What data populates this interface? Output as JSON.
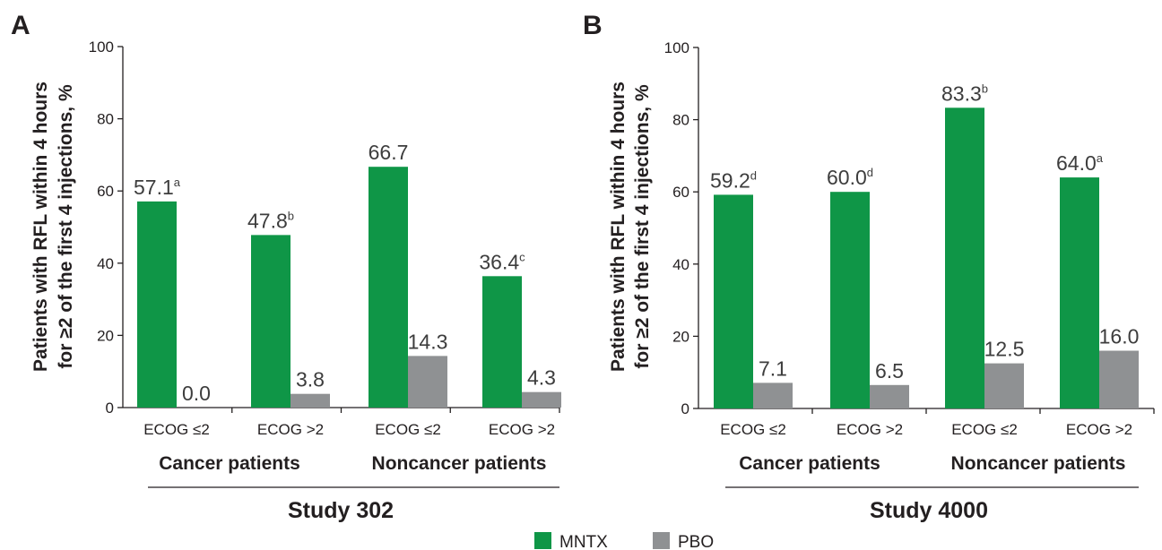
{
  "colors": {
    "mntx": "#0f9647",
    "pbo": "#8f9193",
    "axis": "#231f20",
    "text": "#231f20",
    "label": "#3d3d3d"
  },
  "legend": [
    {
      "name": "MNTX",
      "color": "#0f9647"
    },
    {
      "name": "PBO",
      "color": "#8f9193"
    }
  ],
  "chart_data": [
    {
      "type": "bar",
      "panel_label": "A",
      "title": "Study 302",
      "ylabel_lines": [
        "Patients with RFL within 4 hours",
        "for ≥2 of the first 4 injections, %"
      ],
      "ylim": [
        0,
        100
      ],
      "yticks": [
        0,
        20,
        40,
        60,
        80,
        100
      ],
      "categories": [
        "ECOG ≤2",
        "ECOG >2",
        "ECOG ≤2",
        "ECOG >2"
      ],
      "groups": [
        "Cancer patients",
        "Noncancer patients"
      ],
      "series": [
        {
          "name": "MNTX",
          "values": [
            57.1,
            47.8,
            66.7,
            36.4
          ],
          "labels": [
            "57.1",
            "47.8",
            "66.7",
            "36.4"
          ],
          "superscripts": [
            "a",
            "b",
            "",
            "c"
          ]
        },
        {
          "name": "PBO",
          "values": [
            0.0,
            3.8,
            14.3,
            4.3
          ],
          "labels": [
            "0.0",
            "3.8",
            "14.3",
            "4.3"
          ],
          "superscripts": [
            "",
            "",
            "",
            ""
          ]
        }
      ]
    },
    {
      "type": "bar",
      "panel_label": "B",
      "title": "Study 4000",
      "ylabel_lines": [
        "Patients with RFL within 4 hours",
        "for ≥2 of the first 4 injections, %"
      ],
      "ylim": [
        0,
        100
      ],
      "yticks": [
        0,
        20,
        40,
        60,
        80,
        100
      ],
      "categories": [
        "ECOG ≤2",
        "ECOG >2",
        "ECOG ≤2",
        "ECOG >2"
      ],
      "groups": [
        "Cancer patients",
        "Noncancer patients"
      ],
      "series": [
        {
          "name": "MNTX",
          "values": [
            59.2,
            60.0,
            83.3,
            64.0
          ],
          "labels": [
            "59.2",
            "60.0",
            "83.3",
            "64.0"
          ],
          "superscripts": [
            "d",
            "d",
            "b",
            "a"
          ]
        },
        {
          "name": "PBO",
          "values": [
            7.1,
            6.5,
            12.5,
            16.0
          ],
          "labels": [
            "7.1",
            "6.5",
            "12.5",
            "16.0"
          ],
          "superscripts": [
            "",
            "",
            "",
            ""
          ]
        }
      ]
    }
  ]
}
